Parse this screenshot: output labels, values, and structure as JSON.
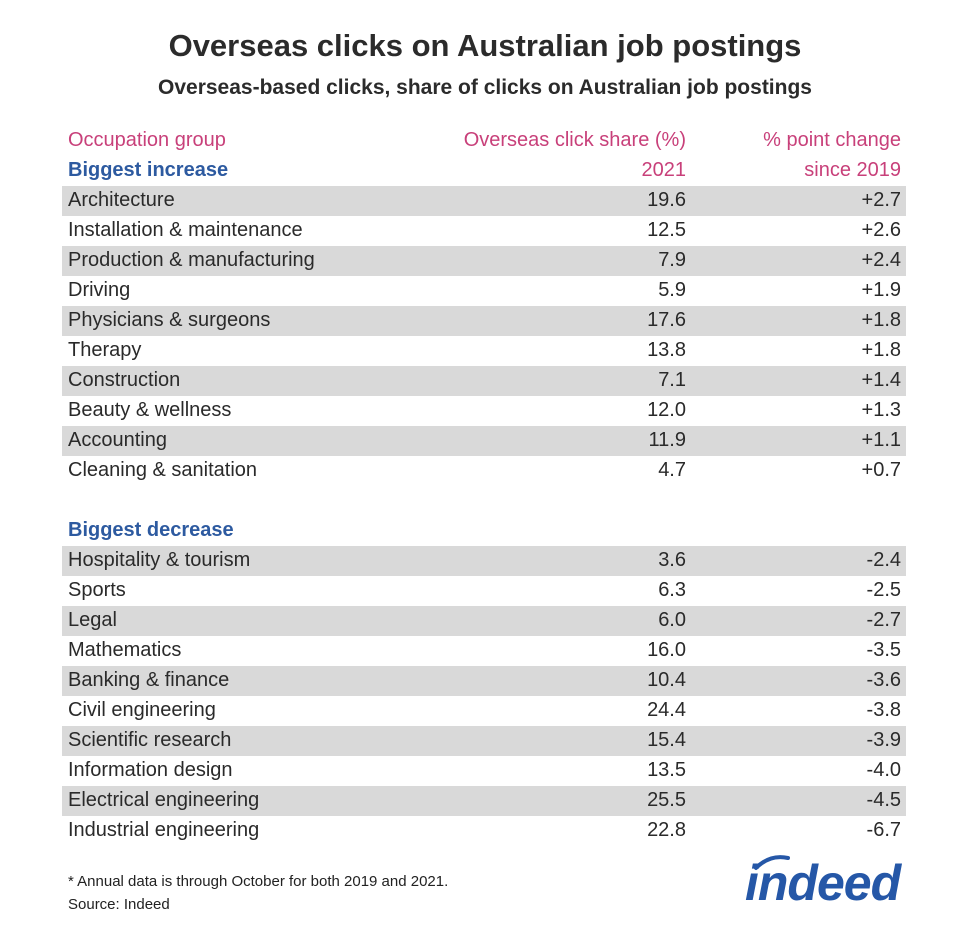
{
  "title": "Overseas clicks on Australian job postings",
  "subtitle": "Overseas-based clicks, share of clicks on Australian job postings",
  "table": {
    "columns": [
      {
        "lines": [
          "Occupation group"
        ]
      },
      {
        "lines": [
          "Overseas click share (%)",
          "2021"
        ]
      },
      {
        "lines": [
          "% point change",
          "since 2019"
        ]
      }
    ],
    "sections": [
      {
        "label": "Biggest increase",
        "rows": [
          [
            "Architecture",
            "19.6",
            "+2.7"
          ],
          [
            "Installation & maintenance",
            "12.5",
            "+2.6"
          ],
          [
            "Production & manufacturing",
            "7.9",
            "+2.4"
          ],
          [
            "Driving",
            "5.9",
            "+1.9"
          ],
          [
            "Physicians & surgeons",
            "17.6",
            "+1.8"
          ],
          [
            "Therapy",
            "13.8",
            "+1.8"
          ],
          [
            "Construction",
            "7.1",
            "+1.4"
          ],
          [
            "Beauty & wellness",
            "12.0",
            "+1.3"
          ],
          [
            "Accounting",
            "11.9",
            "+1.1"
          ],
          [
            "Cleaning & sanitation",
            "4.7",
            "+0.7"
          ]
        ]
      },
      {
        "label": "Biggest decrease",
        "rows": [
          [
            "Hospitality & tourism",
            "3.6",
            "-2.4"
          ],
          [
            "Sports",
            "6.3",
            "-2.5"
          ],
          [
            "Legal",
            "6.0",
            "-2.7"
          ],
          [
            "Mathematics",
            "16.0",
            "-3.5"
          ],
          [
            "Banking & finance",
            "10.4",
            "-3.6"
          ],
          [
            "Civil engineering",
            "24.4",
            "-3.8"
          ],
          [
            "Scientific research",
            "15.4",
            "-3.9"
          ],
          [
            "Information design",
            "13.5",
            "-4.0"
          ],
          [
            "Electrical engineering",
            "25.5",
            "-4.5"
          ],
          [
            "Industrial engineering",
            "22.8",
            "-6.7"
          ]
        ]
      }
    ]
  },
  "footnote": [
    "* Annual data is through October for both 2019 and 2021.",
    "Source: Indeed"
  ],
  "logo": "indeed"
}
